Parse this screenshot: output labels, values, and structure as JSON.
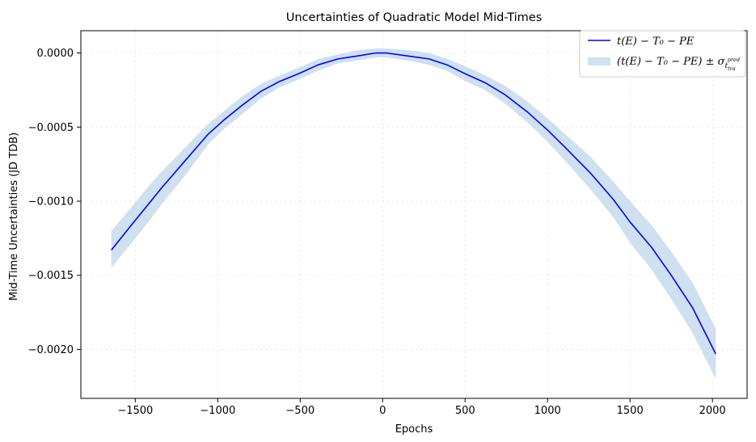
{
  "chart_data": {
    "type": "line",
    "title": "Uncertainties of Quadratic Model Mid-Times",
    "xlabel": "Epochs",
    "ylabel": "Mid-Time Uncertainties (JD TDB)",
    "xlim": [
      -1830,
      2210
    ],
    "ylim": [
      -0.00233,
      0.00015
    ],
    "xticks": [
      -1500,
      -1000,
      -500,
      0,
      500,
      1000,
      1500,
      2000
    ],
    "xtick_labels": [
      "−1500",
      "−1000",
      "−500",
      "0",
      "500",
      "1000",
      "1500",
      "2000"
    ],
    "yticks": [
      0.0,
      -0.0005,
      -0.001,
      -0.0015,
      -0.002
    ],
    "ytick_labels": [
      "0.0000",
      "−0.0005",
      "−0.0010",
      "−0.0015",
      "−0.0020"
    ],
    "grid": true,
    "legend_position": "top-right",
    "series": [
      {
        "name": "t(E) − T₀ − PE",
        "color": "#0000ff",
        "x": [
          -1645,
          -1530,
          -1420,
          -1340,
          -1200,
          -1060,
          -960,
          -860,
          -740,
          -630,
          -510,
          -390,
          -270,
          -150,
          -40,
          20,
          150,
          280,
          390,
          500,
          620,
          740,
          880,
          1000,
          1100,
          1260,
          1400,
          1500,
          1630,
          1750,
          1880,
          2020
        ],
        "y": [
          -0.00133,
          -0.00117,
          -0.00102,
          -0.00091,
          -0.00073,
          -0.00055,
          -0.00045,
          -0.00036,
          -0.00026,
          -0.000195,
          -0.00014,
          -8e-05,
          -4e-05,
          -2e-05,
          0.0,
          0.0,
          -2e-05,
          -4e-05,
          -8e-05,
          -0.00014,
          -0.0002,
          -0.00028,
          -0.0004,
          -0.00052,
          -0.00063,
          -0.00081,
          -0.00099,
          -0.00114,
          -0.00131,
          -0.0015,
          -0.00172,
          -0.00203
        ]
      },
      {
        "name": "(t(E) − T₀ − PE) ± σ",
        "color": "#cfe0f0",
        "type": "band",
        "x": [
          -1645,
          -1530,
          -1420,
          -1340,
          -1200,
          -1060,
          -960,
          -860,
          -740,
          -630,
          -510,
          -390,
          -270,
          -150,
          -40,
          20,
          150,
          280,
          390,
          500,
          620,
          740,
          880,
          1000,
          1100,
          1260,
          1400,
          1500,
          1630,
          1750,
          1880,
          2020
        ],
        "y_upper": [
          -0.0012,
          -0.00105,
          -0.0009,
          -0.0008,
          -0.00064,
          -0.00048,
          -0.00039,
          -0.0003,
          -0.00021,
          -0.000155,
          -0.0001,
          -4e-05,
          -1e-05,
          2e-05,
          3e-05,
          3e-05,
          2e-05,
          0.0,
          -4e-05,
          -9e-05,
          -0.00015,
          -0.00022,
          -0.00033,
          -0.00044,
          -0.00054,
          -0.0007,
          -0.00087,
          -0.001,
          -0.00116,
          -0.00134,
          -0.00155,
          -0.00186
        ],
        "y_lower": [
          -0.00145,
          -0.00129,
          -0.00114,
          -0.00102,
          -0.00083,
          -0.00062,
          -0.00051,
          -0.00042,
          -0.00031,
          -0.000235,
          -0.00018,
          -0.00012,
          -7e-05,
          -5e-05,
          -3e-05,
          -3e-05,
          -5e-05,
          -8e-05,
          -0.00012,
          -0.00019,
          -0.00025,
          -0.00034,
          -0.00047,
          -0.0006,
          -0.00072,
          -0.00092,
          -0.00111,
          -0.00128,
          -0.00146,
          -0.00166,
          -0.00189,
          -0.0022
        ]
      }
    ]
  },
  "legend": {
    "line_label": "t(E) − T₀ − PE",
    "band_label": "(t(E) − T₀ − PE) ± σ",
    "band_sigma_sub": "t",
    "band_sigma_subsub": "tra",
    "band_sigma_sup": "pred"
  }
}
